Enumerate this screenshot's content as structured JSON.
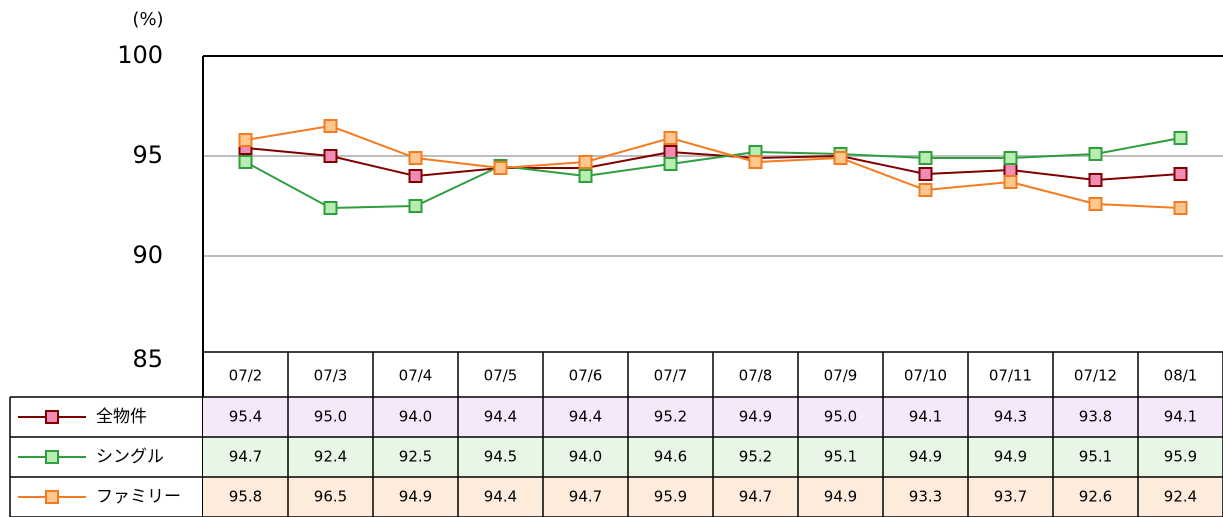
{
  "chart_data": {
    "type": "line",
    "y_label": "(%)",
    "categories": [
      "07/2",
      "07/3",
      "07/4",
      "07/5",
      "07/6",
      "07/7",
      "07/8",
      "07/9",
      "07/10",
      "07/11",
      "07/12",
      "08/1"
    ],
    "ylim": [
      85,
      100
    ],
    "yticks": [
      85,
      90,
      95,
      100
    ],
    "grid": true,
    "series": [
      {
        "name": "全物件",
        "color": "#800000",
        "marker_fill": "#f08cb4",
        "row_fill": "#f6e8fb",
        "values": [
          95.4,
          95,
          94,
          94.4,
          94.4,
          95.2,
          94.9,
          95,
          94.1,
          94.3,
          93.8,
          94.1
        ],
        "value_labels": [
          "95.4",
          "95.0",
          "94.0",
          "94.4",
          "94.4",
          "95.2",
          "94.9",
          "95.0",
          "94.1",
          "94.3",
          "93.8",
          "94.1"
        ]
      },
      {
        "name": "シングル",
        "color": "#2e9e3e",
        "marker_fill": "#b8ecb0",
        "row_fill": "#e8f6e6",
        "values": [
          94.7,
          92.4,
          92.5,
          94.5,
          94,
          94.6,
          95.2,
          95.1,
          94.9,
          94.9,
          95.1,
          95.9
        ],
        "value_labels": [
          "94.7",
          "92.4",
          "92.5",
          "94.5",
          "94.0",
          "94.6",
          "95.2",
          "95.1",
          "94.9",
          "94.9",
          "95.1",
          "95.9"
        ]
      },
      {
        "name": "ファミリー",
        "color": "#f47b20",
        "marker_fill": "#fcc890",
        "row_fill": "#fdecdc",
        "values": [
          95.8,
          96.5,
          94.9,
          94.4,
          94.7,
          95.9,
          94.7,
          94.9,
          93.3,
          93.7,
          92.6,
          92.4
        ],
        "value_labels": [
          "95.8",
          "96.5",
          "94.9",
          "94.4",
          "94.7",
          "95.9",
          "94.7",
          "94.9",
          "93.3",
          "93.7",
          "92.6",
          "92.4"
        ]
      }
    ]
  }
}
